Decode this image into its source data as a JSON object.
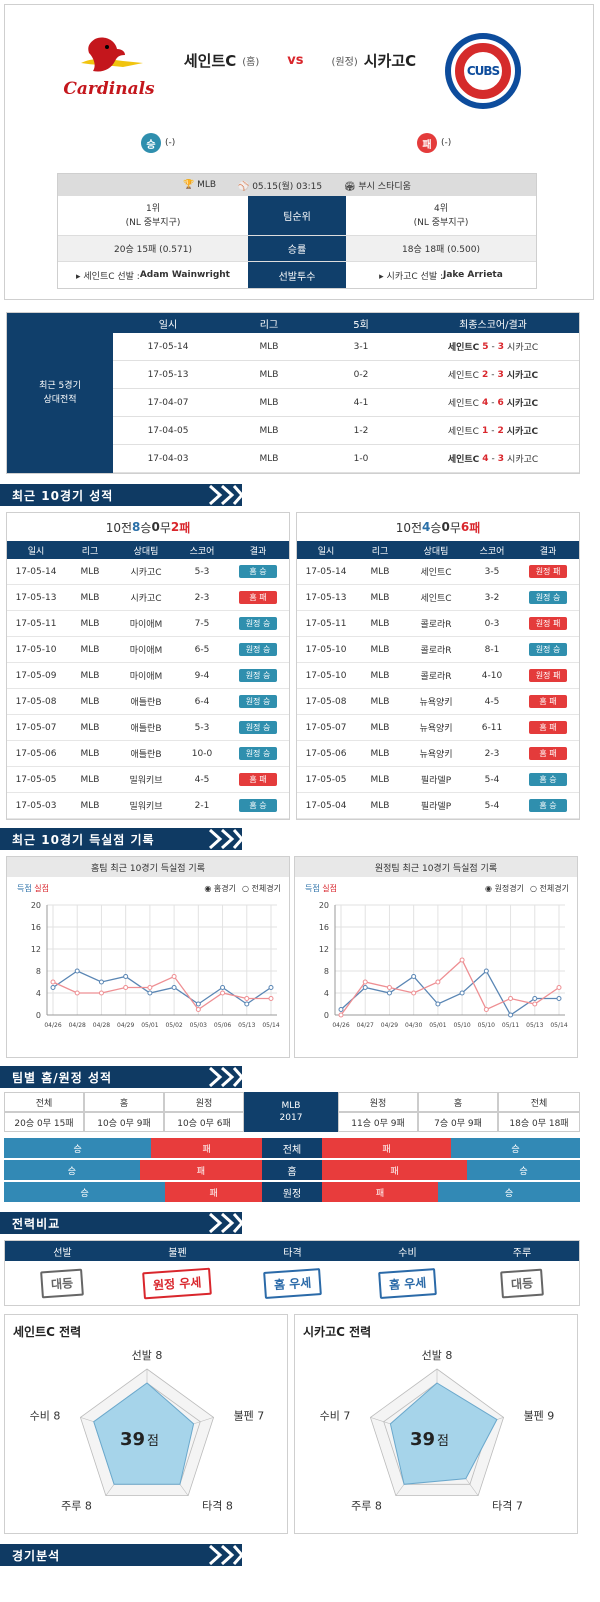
{
  "header": {
    "home_team": "세인트C",
    "home_tag": "(홈)",
    "vs": "vs",
    "away_tag": "(원정)",
    "away_team": "시카고C",
    "home_logo_text": "Cardinals",
    "away_logo_text": "CUBS",
    "home_result_badge": "승",
    "home_result_value": "(-)",
    "away_result_badge": "패",
    "away_result_value": "(-)"
  },
  "info": {
    "league": "MLB",
    "datetime": "05.15(월) 03:15",
    "stadium": "부시 스타디움",
    "rows": [
      {
        "home": "1위\n(NL 중부지구)",
        "label": "팀순위",
        "away": "4위\n(NL 중부지구)"
      },
      {
        "home": "20승 15패 (0.571)",
        "label": "승률",
        "away": "18승 18패 (0.500)"
      },
      {
        "home": "▸ 세인트C 선발 : ",
        "home_name": "Adam Wainwright",
        "label": "선발투수",
        "away": "▸ 시카고C 선발 : ",
        "away_name": "Jake Arrieta"
      }
    ]
  },
  "h2h": {
    "title": "최근 5경기\n상대전적",
    "headers": [
      "일시",
      "리그",
      "5회",
      "최종스코어/결과"
    ],
    "rows": [
      {
        "date": "17-05-14",
        "league": "MLB",
        "inning5": "3-1",
        "home": "세인트C",
        "hs": "5",
        "as": "3",
        "away": "시카고C",
        "winner": "home"
      },
      {
        "date": "17-05-13",
        "league": "MLB",
        "inning5": "0-2",
        "home": "세인트C",
        "hs": "2",
        "as": "3",
        "away": "시카고C",
        "winner": "away"
      },
      {
        "date": "17-04-07",
        "league": "MLB",
        "inning5": "4-1",
        "home": "세인트C",
        "hs": "4",
        "as": "6",
        "away": "시카고C",
        "winner": "away"
      },
      {
        "date": "17-04-05",
        "league": "MLB",
        "inning5": "1-2",
        "home": "세인트C",
        "hs": "1",
        "as": "2",
        "away": "시카고C",
        "winner": "away"
      },
      {
        "date": "17-04-03",
        "league": "MLB",
        "inning5": "1-0",
        "home": "세인트C",
        "hs": "4",
        "as": "3",
        "away": "시카고C",
        "winner": "home"
      }
    ]
  },
  "recent10": {
    "section_title": "최근 10경기 성적",
    "headers": [
      "일시",
      "리그",
      "상대팀",
      "스코어",
      "결과"
    ],
    "home": {
      "summary_prefix": "10전 ",
      "wins": "8",
      "w": "승 ",
      "draws": "0",
      "d": "무 ",
      "losses": "2",
      "l": "패",
      "rows": [
        [
          "17-05-14",
          "MLB",
          "시카고C",
          "5-3",
          "홈 승"
        ],
        [
          "17-05-13",
          "MLB",
          "시카고C",
          "2-3",
          "홈 패"
        ],
        [
          "17-05-11",
          "MLB",
          "마이애M",
          "7-5",
          "원정 승"
        ],
        [
          "17-05-10",
          "MLB",
          "마이애M",
          "6-5",
          "원정 승"
        ],
        [
          "17-05-09",
          "MLB",
          "마이애M",
          "9-4",
          "원정 승"
        ],
        [
          "17-05-08",
          "MLB",
          "애틀란B",
          "6-4",
          "원정 승"
        ],
        [
          "17-05-07",
          "MLB",
          "애틀란B",
          "5-3",
          "원정 승"
        ],
        [
          "17-05-06",
          "MLB",
          "애틀란B",
          "10-0",
          "원정 승"
        ],
        [
          "17-05-05",
          "MLB",
          "밀워키브",
          "4-5",
          "홈 패"
        ],
        [
          "17-05-03",
          "MLB",
          "밀워키브",
          "2-1",
          "홈 승"
        ]
      ]
    },
    "away": {
      "summary_prefix": "10전 ",
      "wins": "4",
      "w": "승 ",
      "draws": "0",
      "d": "무 ",
      "losses": "6",
      "l": "패",
      "rows": [
        [
          "17-05-14",
          "MLB",
          "세인트C",
          "3-5",
          "원정 패"
        ],
        [
          "17-05-13",
          "MLB",
          "세인트C",
          "3-2",
          "원정 승"
        ],
        [
          "17-05-11",
          "MLB",
          "콜로라R",
          "0-3",
          "원정 패"
        ],
        [
          "17-05-10",
          "MLB",
          "콜로라R",
          "8-1",
          "원정 승"
        ],
        [
          "17-05-10",
          "MLB",
          "콜로라R",
          "4-10",
          "원정 패"
        ],
        [
          "17-05-08",
          "MLB",
          "뉴욕양키",
          "4-5",
          "홈 패"
        ],
        [
          "17-05-07",
          "MLB",
          "뉴욕양키",
          "6-11",
          "홈 패"
        ],
        [
          "17-05-06",
          "MLB",
          "뉴욕양키",
          "2-3",
          "홈 패"
        ],
        [
          "17-05-05",
          "MLB",
          "필라델P",
          "5-4",
          "홈 승"
        ],
        [
          "17-05-04",
          "MLB",
          "필라델P",
          "5-4",
          "홈 승"
        ]
      ]
    }
  },
  "scoring": {
    "section_title": "최근 10경기 득실점 기록",
    "home_title": "홈팀 최근 10경기 득실점 기록",
    "away_title": "원정팀 최근 10경기 득실점 기록",
    "legend_scored": "득점",
    "legend_allowed": "실점",
    "home_radio1": "홈경기",
    "home_radio2": "전체경기",
    "away_radio1": "원정경기",
    "away_radio2": "전체경기"
  },
  "chart_data": [
    {
      "type": "line",
      "x": [
        "04/26",
        "04/28",
        "04/28",
        "04/29",
        "05/01",
        "05/02",
        "05/03",
        "05/06",
        "05/13",
        "05/14"
      ],
      "ylim": [
        0,
        20
      ],
      "yticks": [
        0,
        4,
        8,
        12,
        16,
        20
      ],
      "series": [
        {
          "name": "득점",
          "color": "#5a86b4",
          "values": [
            5,
            8,
            6,
            7,
            4,
            5,
            2,
            5,
            2,
            5
          ]
        },
        {
          "name": "실점",
          "color": "#ee8f93",
          "values": [
            6,
            4,
            4,
            5,
            5,
            7,
            1,
            4,
            3,
            3
          ]
        }
      ]
    },
    {
      "type": "line",
      "x": [
        "04/26",
        "04/27",
        "04/29",
        "04/30",
        "05/01",
        "05/10",
        "05/10",
        "05/11",
        "05/13",
        "05/14"
      ],
      "ylim": [
        0,
        20
      ],
      "yticks": [
        0,
        4,
        8,
        12,
        16,
        20
      ],
      "series": [
        {
          "name": "득점",
          "color": "#5a86b4",
          "values": [
            1,
            5,
            4,
            7,
            2,
            4,
            8,
            0,
            3,
            3
          ]
        },
        {
          "name": "실점",
          "color": "#ee8f93",
          "values": [
            0,
            6,
            5,
            4,
            6,
            10,
            1,
            3,
            2,
            5
          ]
        }
      ]
    }
  ],
  "homeaway": {
    "section_title": "팀별 홈/원정 성적",
    "center_top": "MLB\n2017",
    "left_headers": [
      "전체",
      "홈",
      "원정"
    ],
    "left_values": [
      "20승 0무 15패",
      "10승 0무 9패",
      "10승 0무 6패"
    ],
    "right_headers": [
      "원정",
      "홈",
      "전체"
    ],
    "right_values": [
      "11승 0무 9패",
      "7승 0무 9패",
      "18승 0무 18패"
    ],
    "bars": [
      {
        "label": "전체",
        "home_win": "승",
        "home_loss": "패",
        "away_loss": "패",
        "away_win": "승",
        "home_win_frac": 0.571,
        "away_win_frac": 0.5
      },
      {
        "label": "홈",
        "home_win": "승",
        "home_loss": "패",
        "away_loss": "패",
        "away_win": "승",
        "home_win_frac": 0.526,
        "away_win_frac": 0.4375
      },
      {
        "label": "원정",
        "home_win": "승",
        "home_loss": "패",
        "away_loss": "패",
        "away_win": "승",
        "home_win_frac": 0.625,
        "away_win_frac": 0.55
      }
    ]
  },
  "compare": {
    "section_title": "전력비교",
    "headers": [
      "선발",
      "불펜",
      "타격",
      "수비",
      "주루"
    ],
    "stamps": [
      {
        "text": "대등",
        "tone": "gray"
      },
      {
        "text": "원정 우세",
        "tone": "red"
      },
      {
        "text": "홈 우세",
        "tone": "blue"
      },
      {
        "text": "홈 우세",
        "tone": "blue"
      },
      {
        "text": "대등",
        "tone": "gray"
      }
    ]
  },
  "radar": [
    {
      "title": "세인트C 전력",
      "total": "39",
      "unit": "점",
      "labels": {
        "top": "선발 8",
        "right": "불펜 7",
        "bright": "타격 8",
        "bleft": "주루 8",
        "left": "수비 8"
      },
      "values": [
        8,
        7,
        8,
        8,
        8
      ]
    },
    {
      "title": "시카고C 전력",
      "total": "39",
      "unit": "점",
      "labels": {
        "top": "선발 8",
        "right": "불펜 9",
        "bright": "타격 7",
        "bleft": "주루 8",
        "left": "수비 7"
      },
      "values": [
        8,
        9,
        7,
        8,
        7
      ]
    }
  ],
  "analysis": {
    "section_title": "경기분석"
  },
  "colors": {
    "navy": "#103f6b",
    "red": "#e43b3b",
    "teal": "#2f8fae",
    "bar_blue": "#3289b5",
    "bar_red": "#e83c3c"
  }
}
